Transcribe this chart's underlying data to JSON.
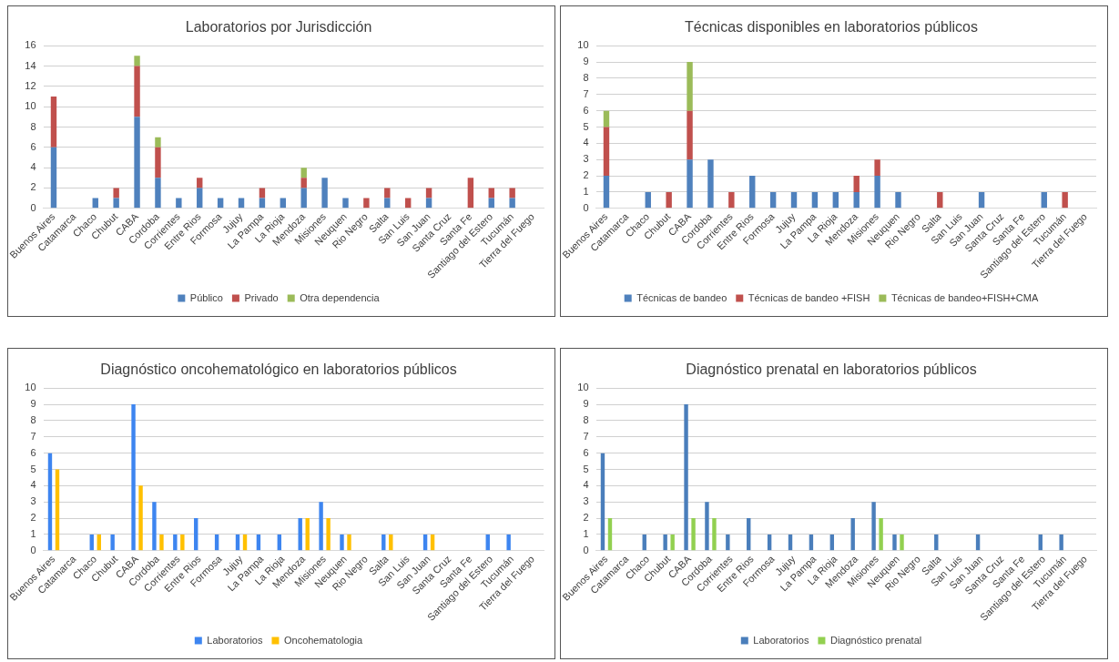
{
  "chart_data": [
    {
      "type": "bar",
      "title": "Laboratorios por Jurisdicción",
      "stacked": true,
      "legend": "bottom",
      "grid": "y",
      "ylim": [
        0,
        16
      ],
      "yticks": [
        0,
        2,
        4,
        6,
        8,
        10,
        12,
        14,
        16
      ],
      "categories": [
        "Buenos Aires",
        "Catamarca",
        "Chaco",
        "Chubut",
        "CABA",
        "Cordoba",
        "Corrientes",
        "Entre Rios",
        "Formosa",
        "Jujuy",
        "La Pampa",
        "La Rioja",
        "Mendoza",
        "Misiones",
        "Neuquen",
        "Rio Negro",
        "Salta",
        "San Luis",
        "San Juan",
        "Santa Cruz",
        "Santa Fe",
        "Santiago del Estero",
        "Tucumán",
        "Tierra del Fuego"
      ],
      "series": [
        {
          "name": "Público",
          "color": "#4f81bd",
          "values": [
            6,
            0,
            1,
            1,
            9,
            3,
            1,
            2,
            1,
            1,
            1,
            1,
            2,
            3,
            1,
            0,
            1,
            0,
            1,
            0,
            0,
            1,
            1,
            0
          ]
        },
        {
          "name": "Privado",
          "color": "#c0504d",
          "values": [
            5,
            0,
            0,
            1,
            5,
            3,
            0,
            1,
            0,
            0,
            1,
            0,
            1,
            0,
            0,
            1,
            1,
            1,
            1,
            0,
            3,
            1,
            1,
            0
          ]
        },
        {
          "name": "Otra dependencia",
          "color": "#9bbb59",
          "values": [
            0,
            0,
            0,
            0,
            1,
            1,
            0,
            0,
            0,
            0,
            0,
            0,
            1,
            0,
            0,
            0,
            0,
            0,
            0,
            0,
            0,
            0,
            0,
            0
          ]
        }
      ]
    },
    {
      "type": "bar",
      "title": "Técnicas disponibles en laboratorios públicos",
      "stacked": true,
      "legend": "bottom",
      "grid": "y",
      "ylim": [
        0,
        10
      ],
      "yticks": [
        0,
        1,
        2,
        3,
        4,
        5,
        6,
        7,
        8,
        9,
        10
      ],
      "categories": [
        "Buenos Aires",
        "Catamarca",
        "Chaco",
        "Chubut",
        "CABA",
        "Cordoba",
        "Corrientes",
        "Entre Rios",
        "Formosa",
        "Jujuy",
        "La Pampa",
        "La Rioja",
        "Mendoza",
        "Misiones",
        "Neuquen",
        "Rio Negro",
        "Salta",
        "San Luis",
        "San Juan",
        "Santa Cruz",
        "Santa Fe",
        "Santiago del Estero",
        "Tucumán",
        "Tierra del Fuego"
      ],
      "series": [
        {
          "name": "Técnicas de bandeo",
          "color": "#4f81bd",
          "values": [
            2,
            0,
            1,
            0,
            3,
            3,
            0,
            2,
            1,
            1,
            1,
            1,
            1,
            2,
            1,
            0,
            0,
            0,
            1,
            0,
            0,
            1,
            0,
            0
          ]
        },
        {
          "name": "Técnicas de bandeo +FISH",
          "color": "#c0504d",
          "values": [
            3,
            0,
            0,
            1,
            3,
            0,
            1,
            0,
            0,
            0,
            0,
            0,
            1,
            1,
            0,
            0,
            1,
            0,
            0,
            0,
            0,
            0,
            1,
            0
          ]
        },
        {
          "name": "Técnicas de bandeo+FISH+CMA",
          "color": "#9bbb59",
          "values": [
            1,
            0,
            0,
            0,
            3,
            0,
            0,
            0,
            0,
            0,
            0,
            0,
            0,
            0,
            0,
            0,
            0,
            0,
            0,
            0,
            0,
            0,
            0,
            0
          ]
        }
      ]
    },
    {
      "type": "bar",
      "title": "Diagnóstico oncohematológico en laboratorios públicos",
      "legend": "bottom",
      "grid": "y",
      "ylim": [
        0,
        10
      ],
      "yticks": [
        0,
        1,
        2,
        3,
        4,
        5,
        6,
        7,
        8,
        9,
        10
      ],
      "categories": [
        "Buenos Aires",
        "Catamarca",
        "Chaco",
        "Chubut",
        "CABA",
        "Cordoba",
        "Corrientes",
        "Entre Rios",
        "Formosa",
        "Jujuy",
        "La Pampa",
        "La Rioja",
        "Mendoza",
        "Misiones",
        "Neuquen",
        "Rio Negro",
        "Salta",
        "San Luis",
        "San Juan",
        "Santa Cruz",
        "Santa Fe",
        "Santiago del Estero",
        "Tucumán",
        "Tierra del Fuego"
      ],
      "series": [
        {
          "name": "Laboratorios",
          "color": "#3d85f0",
          "values": [
            6,
            0,
            1,
            1,
            9,
            3,
            1,
            2,
            1,
            1,
            1,
            1,
            2,
            3,
            1,
            0,
            1,
            0,
            1,
            0,
            0,
            1,
            1,
            0
          ]
        },
        {
          "name": "Oncohematologia",
          "color": "#ffc000",
          "values": [
            5,
            0,
            1,
            0,
            4,
            1,
            1,
            0,
            0,
            1,
            0,
            0,
            2,
            2,
            1,
            0,
            1,
            0,
            1,
            0,
            0,
            0,
            0,
            0
          ]
        }
      ]
    },
    {
      "type": "bar",
      "title": "Diagnóstico prenatal en laboratorios públicos",
      "legend": "bottom",
      "grid": "y",
      "ylim": [
        0,
        10
      ],
      "yticks": [
        0,
        1,
        2,
        3,
        4,
        5,
        6,
        7,
        8,
        9,
        10
      ],
      "categories": [
        "Buenos Aires",
        "Catamarca",
        "Chaco",
        "Chubut",
        "CABA",
        "Cordoba",
        "Corrientes",
        "Entre Rios",
        "Formosa",
        "Jujuy",
        "La Pampa",
        "La Rioja",
        "Mendoza",
        "Misiones",
        "Neuquen",
        "Rio Negro",
        "Salta",
        "San Luis",
        "San Juan",
        "Santa Cruz",
        "Santa Fe",
        "Santiago del Estero",
        "Tucumán",
        "Tierra del Fuego"
      ],
      "series": [
        {
          "name": "Laboratorios",
          "color": "#4a7ebb",
          "values": [
            6,
            0,
            1,
            1,
            9,
            3,
            1,
            2,
            1,
            1,
            1,
            1,
            2,
            3,
            1,
            0,
            1,
            0,
            1,
            0,
            0,
            1,
            1,
            0
          ]
        },
        {
          "name": "Diagnóstico prenatal",
          "color": "#92d050",
          "values": [
            2,
            0,
            0,
            1,
            2,
            2,
            0,
            0,
            0,
            0,
            0,
            0,
            0,
            2,
            1,
            0,
            0,
            0,
            0,
            0,
            0,
            0,
            0,
            0
          ]
        }
      ]
    }
  ]
}
